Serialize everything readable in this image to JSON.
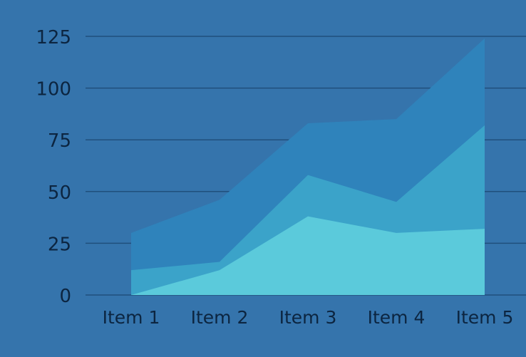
{
  "chart_data": {
    "type": "area",
    "stacked": true,
    "categories": [
      "Item 1",
      "Item 2",
      "Item 3",
      "Item 4",
      "Item 5"
    ],
    "series": [
      {
        "values": [
          0,
          12,
          38,
          30,
          32
        ],
        "color": "#5bcadb"
      },
      {
        "values": [
          12,
          4,
          20,
          15,
          50
        ],
        "color": "#3ba3c9"
      },
      {
        "values": [
          18,
          30,
          25,
          40,
          42
        ],
        "color": "#2f83bb"
      }
    ],
    "yticks": [
      "0",
      "25",
      "50",
      "75",
      "100",
      "125"
    ],
    "ylim": [
      0,
      125
    ],
    "grid": true,
    "legend": "none",
    "colors": {
      "background": "#3574ac",
      "gridline": "#204f7c",
      "tick_label": "#0c2540"
    }
  }
}
